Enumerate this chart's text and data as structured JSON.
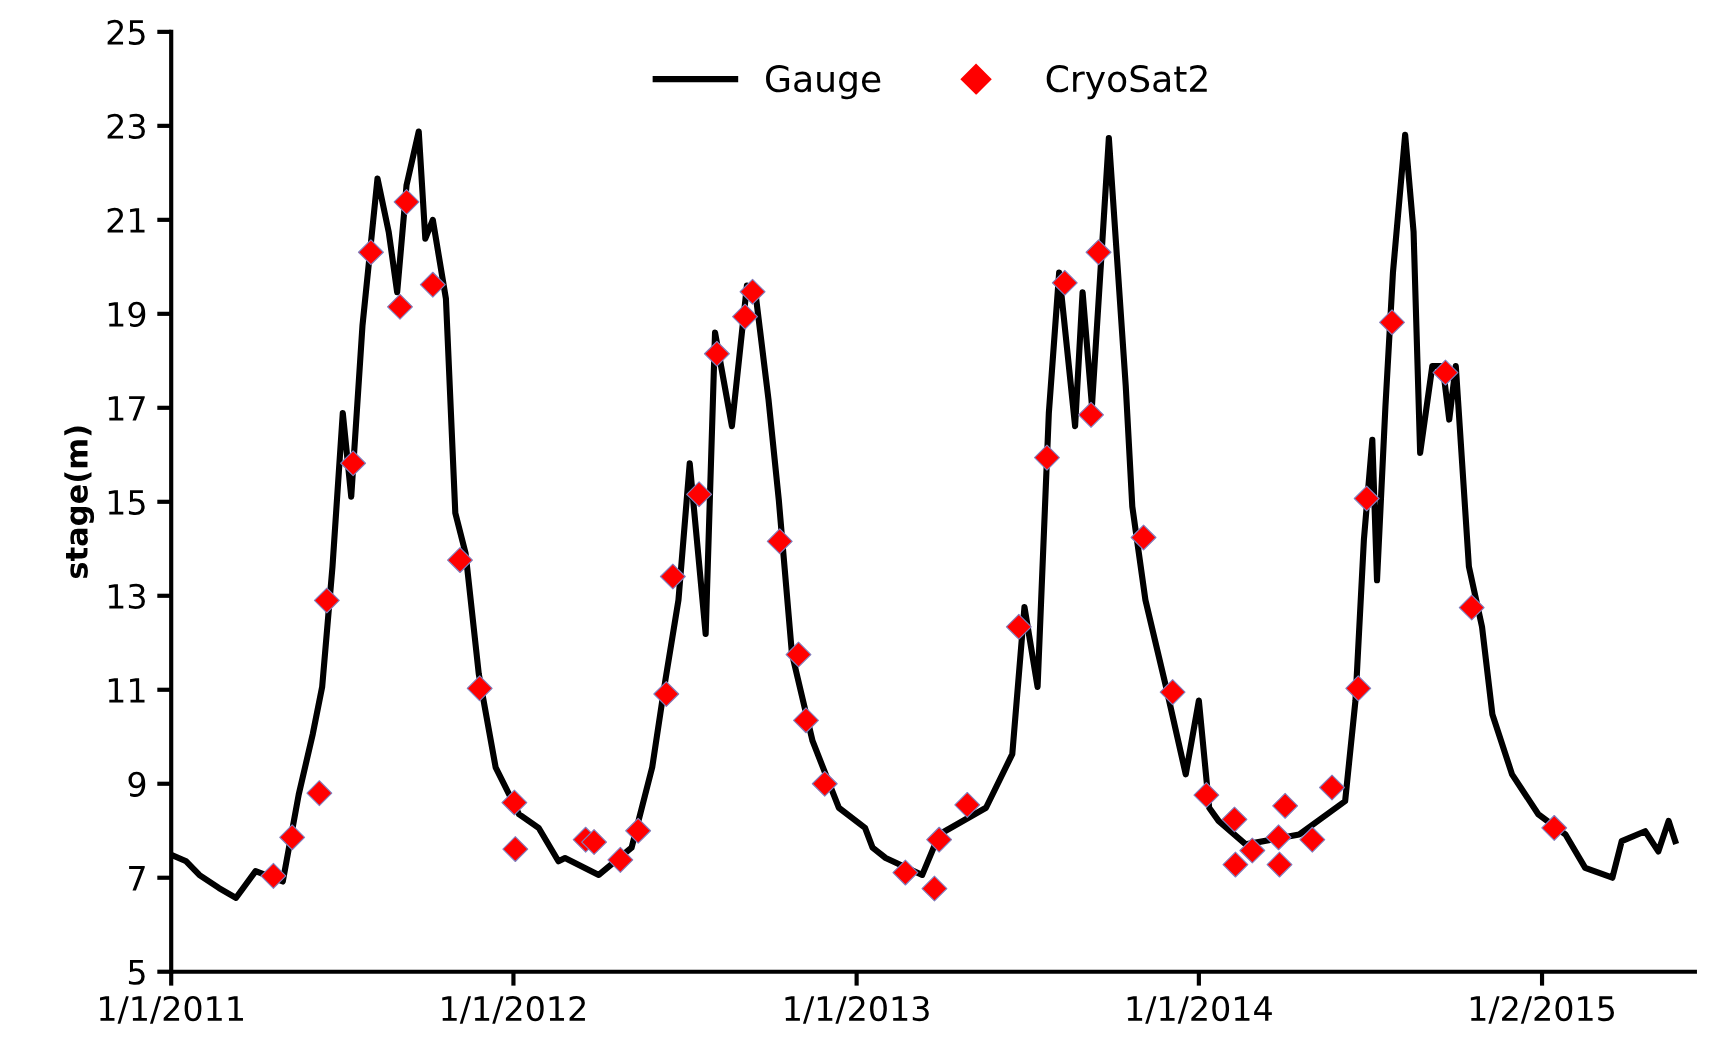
{
  "chart_data": {
    "type": "line",
    "ylabel": "stage(m)",
    "xlim": [
      "2011-01-01",
      "2015-06-14"
    ],
    "ylim": [
      5,
      25
    ],
    "yticks": [
      5,
      7,
      9,
      11,
      13,
      15,
      17,
      19,
      21,
      23,
      25
    ],
    "xticks": [
      {
        "value": "2011-01-01",
        "label": "1/1/2011"
      },
      {
        "value": "2012-01-01",
        "label": "1/1/2012"
      },
      {
        "value": "2013-01-01",
        "label": "1/1/2013"
      },
      {
        "value": "2014-01-01",
        "label": "1/1/2014"
      },
      {
        "value": "2015-01-02",
        "label": "1/2/2015"
      }
    ],
    "grid": false,
    "legend": "top",
    "series": [
      {
        "name": "Gauge",
        "color": "#000000",
        "marker": "none",
        "line_style": "solid",
        "x": [
          "2011-01-01",
          "2011-01-17",
          "2011-01-31",
          "2011-02-21",
          "2011-03-11",
          "2011-04-01",
          "2011-04-30",
          "2011-05-17",
          "2011-06-01",
          "2011-06-11",
          "2011-06-22",
          "2011-07-03",
          "2011-07-12",
          "2011-07-24",
          "2011-08-09",
          "2011-08-21",
          "2011-08-30",
          "2011-09-09",
          "2011-09-22",
          "2011-09-29",
          "2011-10-07",
          "2011-10-21",
          "2011-10-31",
          "2011-11-11",
          "2011-11-25",
          "2011-12-13",
          "2012-01-07",
          "2012-01-28",
          "2012-02-18",
          "2012-02-25",
          "2012-04-01",
          "2012-05-06",
          "2012-05-28",
          "2012-06-11",
          "2012-06-25",
          "2012-07-07",
          "2012-07-24",
          "2012-08-03",
          "2012-08-21",
          "2012-09-06",
          "2012-09-15",
          "2012-09-29",
          "2012-10-10",
          "2012-10-24",
          "2012-11-15",
          "2012-12-13",
          "2013-01-10",
          "2013-01-18",
          "2013-02-01",
          "2013-03-12",
          "2013-03-30",
          "2013-05-19",
          "2013-06-16",
          "2013-06-29",
          "2013-07-13",
          "2013-07-25",
          "2013-08-05",
          "2013-08-22",
          "2013-08-30",
          "2013-09-09",
          "2013-09-27",
          "2013-10-15",
          "2013-10-22",
          "2013-11-05",
          "2013-11-27",
          "2013-12-18",
          "2014-01-01",
          "2014-01-12",
          "2014-01-22",
          "2014-02-20",
          "2014-04-18",
          "2014-06-06",
          "2014-06-17",
          "2014-06-26",
          "2014-07-05",
          "2014-07-10",
          "2014-07-19",
          "2014-07-27",
          "2014-08-09",
          "2014-08-18",
          "2014-08-25",
          "2014-09-07",
          "2014-09-18",
          "2014-09-25",
          "2014-10-02",
          "2014-10-16",
          "2014-10-30",
          "2014-11-10",
          "2014-12-01",
          "2014-12-29",
          "2015-01-27",
          "2015-02-17",
          "2015-03-18",
          "2015-03-28",
          "2015-04-22",
          "2015-05-06",
          "2015-05-17",
          "2015-05-24"
        ],
        "values": [
          7.49,
          7.35,
          7.06,
          6.78,
          6.57,
          7.14,
          6.92,
          8.77,
          10.06,
          11.06,
          13.62,
          16.89,
          15.11,
          18.75,
          21.88,
          20.74,
          19.46,
          21.74,
          22.88,
          20.6,
          21.0,
          19.32,
          14.76,
          13.9,
          11.34,
          9.35,
          8.35,
          8.06,
          7.35,
          7.42,
          7.06,
          7.64,
          9.35,
          11.2,
          12.91,
          15.82,
          12.19,
          18.6,
          16.61,
          19.6,
          19.46,
          17.18,
          15.04,
          11.77,
          9.91,
          8.49,
          8.06,
          7.64,
          7.42,
          7.06,
          7.92,
          8.49,
          9.63,
          12.76,
          11.06,
          16.89,
          19.88,
          16.61,
          19.46,
          17.04,
          22.74,
          17.47,
          14.9,
          12.91,
          11.06,
          9.2,
          10.77,
          8.49,
          8.21,
          7.71,
          7.92,
          8.63,
          10.77,
          14.19,
          16.32,
          13.33,
          17.04,
          19.88,
          22.81,
          20.74,
          16.04,
          17.89,
          17.89,
          16.75,
          17.89,
          13.62,
          12.34,
          10.48,
          9.2,
          8.35,
          7.92,
          7.21,
          7.0,
          7.78,
          7.99,
          7.56,
          8.21,
          7.78
        ]
      },
      {
        "name": "CryoSat2",
        "type": "scatter",
        "color": "#ff0000",
        "marker": "diamond",
        "x": [
          "2011-04-20",
          "2011-05-10",
          "2011-06-08",
          "2011-06-16",
          "2011-07-14",
          "2011-08-02",
          "2011-09-02",
          "2011-09-09",
          "2011-10-07",
          "2011-11-05",
          "2011-11-26",
          "2012-01-02",
          "2012-01-03",
          "2012-03-18",
          "2012-03-27",
          "2012-04-24",
          "2012-05-13",
          "2012-06-12",
          "2012-06-19",
          "2012-07-17",
          "2012-08-05",
          "2012-09-04",
          "2012-09-12",
          "2012-10-11",
          "2012-10-31",
          "2012-11-08",
          "2012-11-28",
          "2013-02-22",
          "2013-03-25",
          "2013-03-30",
          "2013-04-29",
          "2013-06-23",
          "2013-07-23",
          "2013-08-11",
          "2013-09-08",
          "2013-09-16",
          "2013-11-03",
          "2013-12-04",
          "2014-01-09",
          "2014-02-08",
          "2014-02-09",
          "2014-02-27",
          "2014-03-27",
          "2014-03-28",
          "2014-04-03",
          "2014-05-02",
          "2014-05-23",
          "2014-06-20",
          "2014-06-29",
          "2014-07-26",
          "2014-09-21",
          "2014-10-19",
          "2015-01-15"
        ],
        "values": [
          7.04,
          7.86,
          8.8,
          12.9,
          15.82,
          20.31,
          19.15,
          21.38,
          19.62,
          13.76,
          11.03,
          8.6,
          7.61,
          7.81,
          7.76,
          7.38,
          8.0,
          10.91,
          13.41,
          15.16,
          18.15,
          18.94,
          19.47,
          14.16,
          11.75,
          10.35,
          9.0,
          7.11,
          6.77,
          7.81,
          8.55,
          12.34,
          15.94,
          19.66,
          16.85,
          20.31,
          14.24,
          10.95,
          8.76,
          8.24,
          7.28,
          7.58,
          7.86,
          7.28,
          8.53,
          7.81,
          8.92,
          11.03,
          15.07,
          18.82,
          17.75,
          12.75,
          8.06
        ]
      }
    ]
  }
}
